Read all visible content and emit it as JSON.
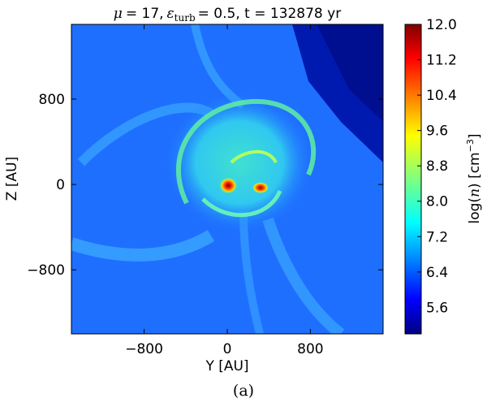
{
  "chart_data": {
    "type": "heatmap",
    "title": {
      "mu_symbol": "μ",
      "mu_value": "= 17,",
      "eps_symbol": "ε",
      "eps_subscript": "turb",
      "eps_value": "= 0.5, t = 132878 yr"
    },
    "xlabel": "Y [AU]",
    "ylabel": "Z [AU]",
    "xlim": [
      -1500,
      1500
    ],
    "ylim": [
      -1400,
      1500
    ],
    "xticks": [
      {
        "value": -800,
        "label": "−800"
      },
      {
        "value": 0,
        "label": "0"
      },
      {
        "value": 800,
        "label": "800"
      }
    ],
    "yticks": [
      {
        "value": 800,
        "label": "800"
      },
      {
        "value": 0,
        "label": "0"
      },
      {
        "value": -800,
        "label": "−800"
      }
    ],
    "colorbar": {
      "label_prefix": "log(",
      "label_var": "n",
      "label_mid": ") [cm",
      "label_exp": "−3",
      "label_suffix": "]",
      "range": [
        5.0,
        12.0
      ],
      "ticks": [
        {
          "value": 12.0,
          "label": "12.0"
        },
        {
          "value": 11.2,
          "label": "11.2"
        },
        {
          "value": 10.4,
          "label": "10.4"
        },
        {
          "value": 9.6,
          "label": "9.6"
        },
        {
          "value": 8.8,
          "label": "8.8"
        },
        {
          "value": 8.0,
          "label": "8.0"
        },
        {
          "value": 7.2,
          "label": "7.2"
        },
        {
          "value": 6.4,
          "label": "6.4"
        },
        {
          "value": 5.6,
          "label": "5.6"
        }
      ],
      "colormap": "jet"
    },
    "features": [
      {
        "name": "primary core",
        "y": 10,
        "z": -10,
        "peak_log_n": 12.0
      },
      {
        "name": "secondary core",
        "y": 320,
        "z": -30,
        "peak_log_n": 11.6
      }
    ]
  },
  "caption": "(a)"
}
